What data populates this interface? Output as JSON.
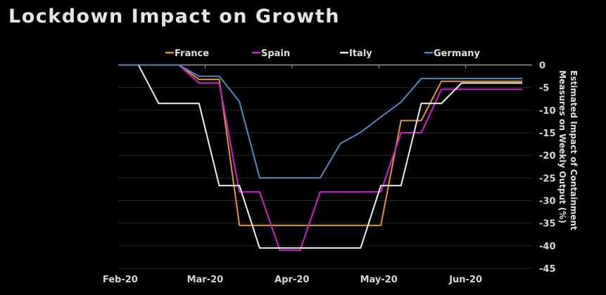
{
  "chart_data": {
    "type": "line",
    "title": "Lockdown Impact on Growth",
    "xlabel": "",
    "ylabel": "Estimated Impact of Containment Measures on Weekly Output (%)",
    "ylabel_lines": [
      "Estimated Impact of Containment",
      "Measures on Weekly Output (%)"
    ],
    "ylim": [
      -45,
      0
    ],
    "yticks": [
      0,
      -5,
      -10,
      -15,
      -20,
      -25,
      -30,
      -35,
      -40,
      -45
    ],
    "y_axis_side": "right",
    "grid": true,
    "legend_position": "top",
    "x_tick_labels": [
      "Feb-20",
      "Mar-20",
      "Apr-20",
      "May-20",
      "Jun-20"
    ],
    "x_tick_weeks": [
      0.1,
      4.3,
      8.6,
      12.9,
      17.2
    ],
    "x_weeks": [
      0,
      1,
      2,
      3,
      4,
      5,
      6,
      7,
      8,
      9,
      10,
      11,
      12,
      13,
      14,
      15,
      16,
      17,
      18,
      19,
      20
    ],
    "series": [
      {
        "name": "France",
        "color": "#e8962c",
        "values": [
          0,
          0,
          0,
          0,
          -3.2,
          -3.2,
          -35.5,
          -35.5,
          -35.5,
          -35.5,
          -35.5,
          -35.5,
          -35.5,
          -35.5,
          -12.3,
          -12.3,
          -3.6,
          -3.6,
          -3.6,
          -3.6,
          -3.6
        ]
      },
      {
        "name": "Spain",
        "color": "#d21fd2",
        "values": [
          0,
          0,
          0,
          0,
          -4,
          -4,
          -28.1,
          -28.1,
          -41,
          -41,
          -28.1,
          -28.1,
          -28.1,
          -28.1,
          -15,
          -15,
          -5.4,
          -5.4,
          -5.4,
          -5.4,
          -5.4
        ]
      },
      {
        "name": "Italy",
        "color": "#f0f0f0",
        "values": [
          0,
          0,
          -8.5,
          -8.5,
          -8.5,
          -26.7,
          -26.7,
          -40.5,
          -40.5,
          -40.5,
          -40.5,
          -40.5,
          -40.5,
          -26.7,
          -26.7,
          -8.5,
          -8.5,
          -4,
          -4,
          -4,
          -4
        ]
      },
      {
        "name": "Germany",
        "color": "#4a90c8",
        "values": [
          0,
          0,
          0,
          0,
          -2.5,
          -2.5,
          -8.1,
          -25,
          -25,
          -25,
          -25,
          -17.4,
          -14.9,
          -11.5,
          -8.2,
          -3,
          -3,
          -3,
          -3,
          -3,
          -3
        ]
      }
    ]
  }
}
